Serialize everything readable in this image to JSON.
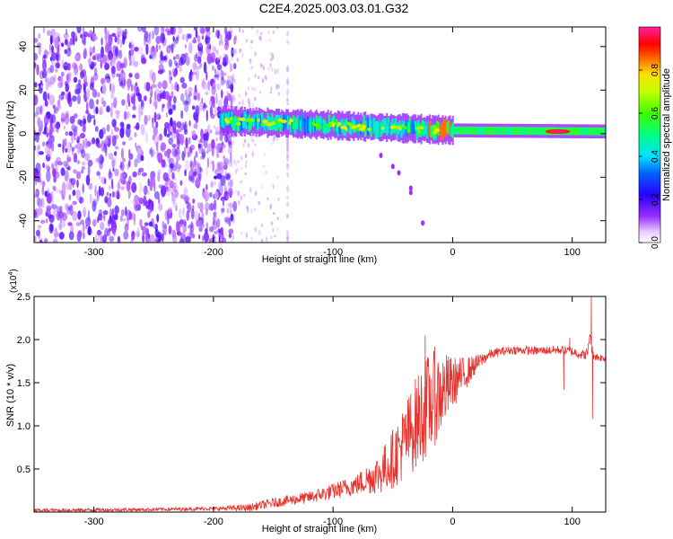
{
  "title": "C2E4.2025.003.03.01.G32",
  "colors": {
    "snr_line": "#e8322e",
    "spec_low": "#7a1ff0",
    "axis": "#000000"
  },
  "chart_data": [
    {
      "type": "heatmap",
      "title": "C2E4.2025.003.03.01.G32",
      "xlabel": "Height of straight line (km)",
      "ylabel": "Frequency (Hz)",
      "xlim": [
        -350,
        128
      ],
      "ylim": [
        -50,
        49
      ],
      "x_ticks": [
        -300,
        -200,
        -100,
        0,
        100
      ],
      "x_tick_labels": [
        "-300",
        "-200",
        "-100",
        "0",
        "100"
      ],
      "y_ticks": [
        -40,
        -20,
        0,
        20,
        40
      ],
      "y_tick_labels": [
        "-40",
        "-20",
        "0",
        "20",
        "40"
      ],
      "colorbar": {
        "label": "Normalized spectral amplitude",
        "range": [
          0.0,
          1.0
        ],
        "ticks": [
          0.0,
          0.2,
          0.4,
          0.6,
          0.8
        ],
        "tick_labels": [
          "0.0",
          "0.2",
          "0.4",
          "0.6",
          "0.8"
        ],
        "colormap": "rainbow"
      },
      "features": {
        "noise_region_x": [
          -350,
          -190
        ],
        "band_start_x": -195,
        "band_freq_at_start": 6,
        "band_freq_at_zero": 1.5,
        "band_freq_at_end": 1,
        "branch_points": [
          [
            -60,
            -10
          ],
          [
            -50,
            -15
          ],
          [
            -45,
            -18
          ],
          [
            -35,
            -25
          ],
          [
            -35,
            -27
          ],
          [
            -25,
            -41
          ]
        ],
        "vertical_streak_x": -138,
        "peak_x": 88,
        "peak_freq": 1
      }
    },
    {
      "type": "line",
      "xlabel": "Height of straight line (km)",
      "ylabel": "SNR (10 * v/v)",
      "y_multiplier_label": "(x10",
      "y_multiplier_exp": "4",
      "y_multiplier_close": ")",
      "xlim": [
        -350,
        128
      ],
      "ylim": [
        0,
        2.5
      ],
      "x_ticks": [
        -300,
        -200,
        -100,
        0,
        100
      ],
      "x_tick_labels": [
        "-300",
        "-200",
        "-100",
        "0",
        "100"
      ],
      "y_ticks": [
        0.5,
        1.0,
        1.5,
        2.0,
        2.5
      ],
      "y_tick_labels": [
        "0.5",
        "1.0",
        "1.5",
        "2.0",
        "2.5"
      ],
      "envelope": {
        "x": [
          -350,
          -250,
          -200,
          -170,
          -160,
          -140,
          -120,
          -100,
          -80,
          -60,
          -50,
          -40,
          -30,
          -20,
          -10,
          0,
          10,
          20,
          30,
          40,
          50,
          70,
          90,
          100,
          110,
          113,
          115,
          116,
          118,
          120,
          128
        ],
        "y": [
          0.02,
          0.03,
          0.04,
          0.05,
          0.08,
          0.13,
          0.17,
          0.24,
          0.32,
          0.46,
          0.62,
          0.82,
          1.05,
          1.25,
          1.38,
          1.5,
          1.6,
          1.72,
          1.82,
          1.86,
          1.88,
          1.87,
          1.88,
          1.86,
          1.82,
          1.85,
          2.1,
          1.9,
          1.82,
          1.8,
          1.78
        ]
      },
      "amplitude": {
        "x": [
          -350,
          -200,
          -160,
          -120,
          -80,
          -60,
          -40,
          -30,
          -20,
          -10,
          0,
          10,
          20,
          30,
          40,
          80,
          110,
          128
        ],
        "y": [
          0.02,
          0.02,
          0.05,
          0.07,
          0.12,
          0.25,
          0.45,
          0.55,
          0.6,
          0.5,
          0.3,
          0.2,
          0.1,
          0.06,
          0.05,
          0.05,
          0.06,
          0.04
        ]
      },
      "spikes": [
        {
          "x": -23,
          "y": 2.05
        },
        {
          "x": -15,
          "y": 1.92
        },
        {
          "x": -8,
          "y": 1.28
        },
        {
          "x": 98,
          "y": 2.02
        },
        {
          "x": 116,
          "y": 2.5
        },
        {
          "x": 117,
          "y": 1.08
        },
        {
          "x": 93,
          "y": 1.42
        }
      ]
    }
  ]
}
